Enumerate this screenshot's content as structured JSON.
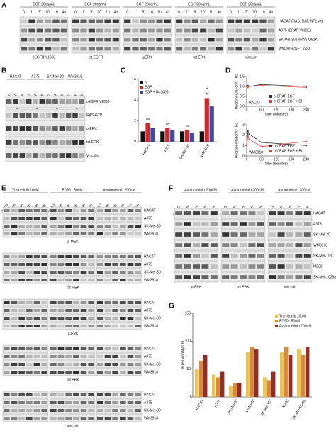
{
  "panel_labels": [
    "A",
    "B",
    "C",
    "D",
    "E",
    "F",
    "G"
  ],
  "panel_a": {
    "header": "EGF 20ng/mL",
    "lanes": [
      "0",
      "1'",
      "5'",
      "10'",
      "1h",
      "4h"
    ],
    "cell_lines": [
      "HACAT (RAS, RAF, NF1 wt)",
      "A375 (BRAF V600E)",
      "SK-Mel-30 (NRAS Q61K)",
      "WM3918 (NF1 loss)"
    ],
    "blots": [
      "pEGFR Y1068",
      "tot EGFR",
      "pERK",
      "tot ERK",
      "Vinculin"
    ]
  },
  "panel_b": {
    "cell_lines": [
      "HACAT",
      "A375",
      "SK-Mel-30",
      "WM3918"
    ],
    "lanes": [
      "nt",
      "EGF",
      "EGF+BI-3406"
    ],
    "blots": [
      "pEGFR Y1068",
      "RAS-GTP",
      "p-ERK",
      "tot ERK",
      "Vinculin"
    ]
  },
  "panel_e": {
    "treatments": [
      "Trametinib 10nM",
      "PD901 50nM",
      "Avutometinib 200nM"
    ],
    "lanes": [
      "DMSO",
      "1h",
      "4h",
      "8h",
      "24h",
      "48h"
    ],
    "cell_lines": [
      "HACAT",
      "A375",
      "SK-Mel-30",
      "WM3918"
    ],
    "blots": [
      "p-MEK",
      "tot MEK",
      "p-ERK",
      "tot ERK",
      "Vinculin"
    ]
  },
  "panel_f": {
    "header": "Avutometinib 200nM",
    "lanes": [
      "DMSO",
      "4h",
      "8h",
      "24h",
      "48h"
    ],
    "cell_lines": [
      "HACAT",
      "A375",
      "SK-Mel-30",
      "WM3918",
      "SK-Mel-113",
      "M230",
      "SK-Mel-1029a"
    ],
    "blots": [
      "p-ERK",
      "tot ERK",
      "Vinculin"
    ]
  },
  "chart_data": [
    {
      "type": "bar",
      "categories": [
        "HACAT",
        "A375",
        "SK-Mel-30",
        "WM3918"
      ],
      "series": [
        {
          "name": "nt",
          "color": "#111111",
          "values": [
            1,
            1,
            1,
            1
          ]
        },
        {
          "name": "EGF",
          "color": "#d62728",
          "values": [
            1.8,
            1.3,
            1.1,
            4.2
          ]
        },
        {
          "name": "EGF + BI-3406",
          "color": "#3b4ba8",
          "values": [
            1.3,
            1.1,
            0.9,
            3.4
          ]
        }
      ],
      "ylim": [
        0,
        6
      ],
      "yticks": [
        0,
        2,
        4,
        6
      ],
      "legend": "upper left",
      "annotations": [
        "ns",
        "ns",
        "ns",
        "ns",
        "*"
      ]
    },
    {
      "type": "line",
      "label": "HACAT",
      "x": [
        0,
        5,
        10,
        60,
        240
      ],
      "series": [
        {
          "name": "p-CRAF EGF",
          "color": "#333333",
          "values": [
            1,
            1.05,
            1.0,
            1.1,
            1.0
          ]
        },
        {
          "name": "p-CRAF EGF + BI",
          "color": "#e0403a",
          "values": [
            1,
            0.95,
            1.0,
            1.05,
            0.95
          ]
        }
      ],
      "xlim": [
        0,
        240
      ],
      "xticks": [
        0,
        60,
        120,
        180,
        240
      ],
      "ylim": [
        0,
        1.5
      ],
      "yticks": [
        {
          "value": 0,
          "label": "0.0"
        },
        0.5,
        {
          "value": 1,
          "label": "1.0"
        },
        1.5
      ],
      "xlabel": "time (minutes)",
      "ylabel": "Phosphorylation/CTRL",
      "legend": "lower right"
    },
    {
      "type": "line",
      "label": "WM3918",
      "x": [
        0,
        5,
        10,
        60,
        240
      ],
      "series": [
        {
          "name": "p-CRAF EGF",
          "color": "#333333",
          "values": [
            1,
            2.4,
            2.1,
            1.3,
            1.0
          ]
        },
        {
          "name": "p-CRAF EGF + BI",
          "color": "#e0403a",
          "values": [
            1,
            1.9,
            1.6,
            0.9,
            1.4
          ]
        }
      ],
      "xlim": [
        0,
        240
      ],
      "xticks": [
        0,
        60,
        120,
        180,
        240
      ],
      "ylim": [
        0,
        3
      ],
      "yticks": [
        0,
        1,
        2,
        3
      ],
      "xlabel": "time (minutes)",
      "ylabel": "Phosphorylation/CTRL",
      "legend": "lower right"
    },
    {
      "type": "bar",
      "categories": [
        "HACAT",
        "A375",
        "SK-Mel-30",
        "WM3918",
        "SK-Mel-113",
        "M230",
        "SK-Mel-1029a"
      ],
      "series": [
        {
          "name": "Trametinib 10nM",
          "color": "#f5c542",
          "values": [
            50,
            40,
            20,
            80,
            35,
            80,
            85
          ]
        },
        {
          "name": "PD901 50nM",
          "color": "#e8862a",
          "values": [
            65,
            35,
            25,
            90,
            30,
            90,
            75
          ]
        },
        {
          "name": "Avutometinib 200nM",
          "color": "#a3261f",
          "values": [
            75,
            45,
            25,
            85,
            45,
            75,
            90
          ]
        }
      ],
      "ylim": [
        0,
        150
      ],
      "yticks": [
        0,
        50,
        100,
        150
      ],
      "ylabel": "% cell viability/Ctrl",
      "legend": "upper right"
    }
  ]
}
